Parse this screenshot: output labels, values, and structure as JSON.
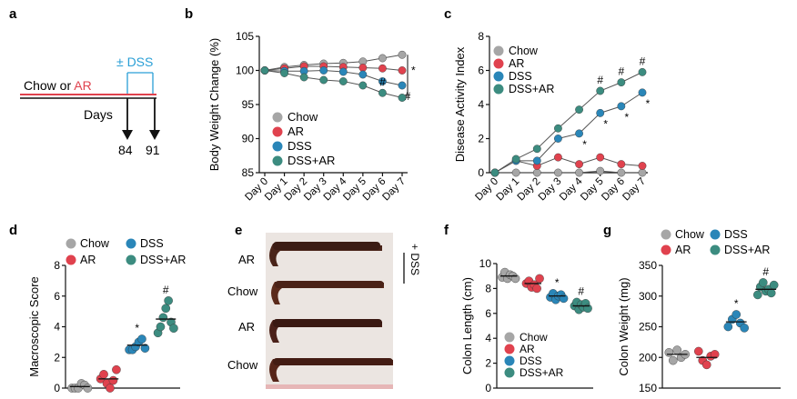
{
  "colors": {
    "chow": "#a6a6a6",
    "ar": "#e0424e",
    "dss": "#2a86b8",
    "dssar": "#3c8c80",
    "ar_text": "#e0424e",
    "dss_text": "#2a9fd6"
  },
  "panel_labels": [
    "a",
    "b",
    "c",
    "d",
    "e",
    "f",
    "g"
  ],
  "panel_a": {
    "dss_label": "± DSS",
    "diet_prefix": "Chow or ",
    "diet_ar": "AR",
    "days_label": "Days",
    "day_84": "84",
    "day_91": "91"
  },
  "legend": {
    "labels": [
      "Chow",
      "AR",
      "DSS",
      "DSS+AR"
    ],
    "icons": [
      "chow-marker-icon",
      "ar-marker-icon",
      "dss-marker-icon",
      "dssar-marker-icon"
    ]
  },
  "panel_e": {
    "labels": [
      "AR",
      "Chow",
      "AR",
      "Chow"
    ],
    "dss_label": "+ DSS"
  },
  "chart_data": [
    {
      "panel": "b",
      "type": "line",
      "title": "",
      "xlabel": "",
      "ylabel": "Body Weight Change  (%)",
      "categories": [
        "Day 0",
        "Day 1",
        "Day 2",
        "Day 3",
        "Day 4",
        "Day 5",
        "Day 6",
        "Day 7"
      ],
      "ylim": [
        85,
        105
      ],
      "yticks": [
        85,
        90,
        95,
        100,
        105
      ],
      "series": [
        {
          "name": "Chow",
          "values": [
            100,
            100.5,
            100.8,
            101,
            101.1,
            101.3,
            101.8,
            102.3
          ]
        },
        {
          "name": "AR",
          "values": [
            100,
            100.3,
            100.6,
            100.6,
            100.5,
            100.4,
            100.3,
            100
          ],
          "markers": [
            "",
            "",
            "",
            "",
            "",
            "",
            "",
            ""
          ]
        },
        {
          "name": "DSS",
          "values": [
            100,
            99.9,
            99.9,
            100,
            99.8,
            99.4,
            98.4,
            97.8
          ],
          "markers": [
            "",
            "",
            "",
            "",
            "",
            "",
            "",
            "#"
          ]
        },
        {
          "name": "DSS+AR",
          "values": [
            100,
            99.6,
            99,
            98.6,
            98.4,
            97.8,
            96.7,
            96
          ],
          "markers": [
            "",
            "",
            "",
            "",
            "",
            "",
            "#",
            ""
          ]
        }
      ],
      "annotations": [
        "*"
      ]
    },
    {
      "panel": "c",
      "type": "line",
      "title": "",
      "xlabel": "",
      "ylabel": "Disease Activity Index",
      "categories": [
        "Day 0",
        "Day 1",
        "Day 2",
        "Day 3",
        "Day 4",
        "Day 5",
        "Day 6",
        "Day 7"
      ],
      "ylim": [
        0,
        8
      ],
      "yticks": [
        0,
        2,
        4,
        6,
        8
      ],
      "series": [
        {
          "name": "Chow",
          "values": [
            0,
            0,
            0,
            0,
            0,
            0.1,
            0,
            0
          ]
        },
        {
          "name": "AR",
          "values": [
            0,
            0.7,
            0.4,
            0.9,
            0.5,
            0.9,
            0.5,
            0.4
          ]
        },
        {
          "name": "DSS",
          "values": [
            0,
            0.7,
            0.7,
            2.0,
            2.3,
            3.5,
            3.9,
            4.7
          ],
          "markers": [
            "",
            "",
            "",
            "",
            "*",
            "*",
            "*",
            "*"
          ]
        },
        {
          "name": "DSS+AR",
          "values": [
            0,
            0.8,
            1.4,
            2.6,
            3.7,
            4.8,
            5.3,
            5.9
          ],
          "markers": [
            "",
            "",
            "",
            "",
            "",
            "#",
            "#",
            "#"
          ]
        }
      ]
    },
    {
      "panel": "d",
      "type": "scatter",
      "title": "",
      "xlabel": "",
      "ylabel": "Macroscopic Score",
      "categories": [
        "Chow",
        "AR",
        "DSS",
        "DSS+AR"
      ],
      "ylim": [
        0,
        8
      ],
      "yticks": [
        0,
        2,
        4,
        6,
        8
      ],
      "series": [
        {
          "name": "Chow",
          "points": [
            0,
            0,
            0,
            0.3,
            0.2,
            0
          ],
          "mean": 0.1,
          "marker": ""
        },
        {
          "name": "AR",
          "points": [
            0.6,
            0.9,
            0.3,
            0,
            0.5,
            1.2
          ],
          "mean": 0.6,
          "marker": ""
        },
        {
          "name": "DSS",
          "points": [
            2.5,
            2.5,
            2.7,
            3.0,
            3.2,
            2.6
          ],
          "mean": 2.8,
          "marker": "*"
        },
        {
          "name": "DSS+AR",
          "points": [
            3.6,
            4.0,
            4.6,
            5.2,
            5.7,
            4.3,
            3.9
          ],
          "mean": 4.5,
          "marker": "#"
        }
      ]
    },
    {
      "panel": "f",
      "type": "scatter",
      "title": "",
      "xlabel": "",
      "ylabel": "Colon Length (cm)",
      "categories": [
        "Chow",
        "AR",
        "DSS",
        "DSS+AR"
      ],
      "ylim": [
        0,
        10
      ],
      "yticks": [
        0,
        2,
        4,
        6,
        8,
        10
      ],
      "series": [
        {
          "name": "Chow",
          "points": [
            8.9,
            9.3,
            8.8,
            9.1,
            9.0,
            8.8
          ],
          "mean": 9.0,
          "marker": ""
        },
        {
          "name": "AR",
          "points": [
            8.4,
            8.6,
            8.1,
            8.3,
            8.0,
            8.8
          ],
          "mean": 8.4,
          "marker": ""
        },
        {
          "name": "DSS",
          "points": [
            7.3,
            7.6,
            7.1,
            7.4,
            7.5,
            7.2
          ],
          "mean": 7.4,
          "marker": "*"
        },
        {
          "name": "DSS+AR",
          "points": [
            6.6,
            6.9,
            6.3,
            6.7,
            6.5,
            6.8,
            6.4
          ],
          "mean": 6.6,
          "marker": "#"
        }
      ]
    },
    {
      "panel": "g",
      "type": "scatter",
      "title": "",
      "xlabel": "",
      "ylabel": "Colon Weight (mg)",
      "categories": [
        "Chow",
        "AR",
        "DSS",
        "DSS+AR"
      ],
      "ylim": [
        150,
        350
      ],
      "yticks": [
        150,
        200,
        250,
        300,
        350
      ],
      "series": [
        {
          "name": "Chow",
          "points": [
            208,
            195,
            212,
            200,
            205
          ],
          "mean": 205,
          "marker": ""
        },
        {
          "name": "AR",
          "points": [
            210,
            195,
            188,
            202,
            205
          ],
          "mean": 200,
          "marker": ""
        },
        {
          "name": "DSS",
          "points": [
            250,
            262,
            270,
            256,
            248
          ],
          "mean": 258,
          "marker": "*"
        },
        {
          "name": "DSS+AR",
          "points": [
            302,
            315,
            322,
            308,
            311,
            305,
            318
          ],
          "mean": 311,
          "marker": "#"
        }
      ]
    }
  ]
}
